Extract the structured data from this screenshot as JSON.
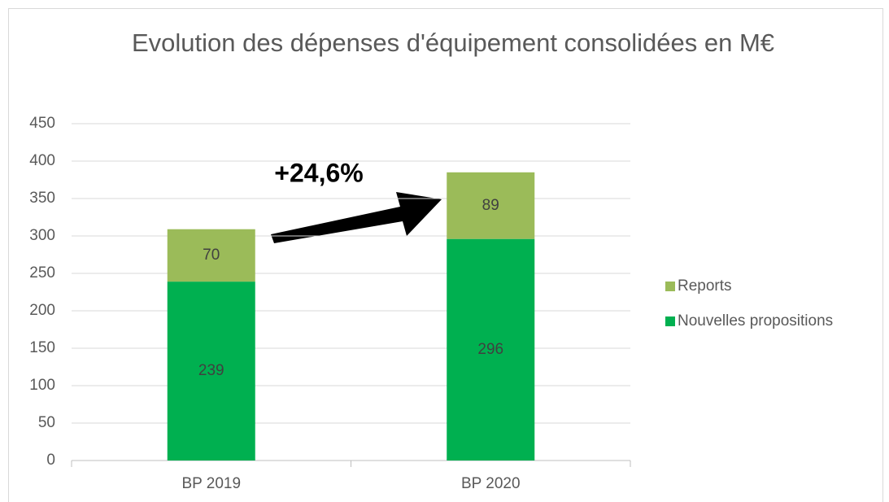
{
  "chart_data": {
    "type": "stacked_bar",
    "title": "Evolution des dépenses d'équipement consolidées en M€",
    "categories": [
      "BP 2019",
      "BP 2020"
    ],
    "series": [
      {
        "name": "Nouvelles propositions",
        "color": "#00b050",
        "values": [
          239,
          296
        ]
      },
      {
        "name": "Reports",
        "color": "#9bbb59",
        "values": [
          70,
          89
        ]
      }
    ],
    "ylim": [
      0,
      450
    ],
    "yticks": [
      0,
      50,
      100,
      150,
      200,
      250,
      300,
      350,
      400,
      450
    ],
    "grid": true,
    "legend": "right",
    "annotation": "+24,6%"
  }
}
